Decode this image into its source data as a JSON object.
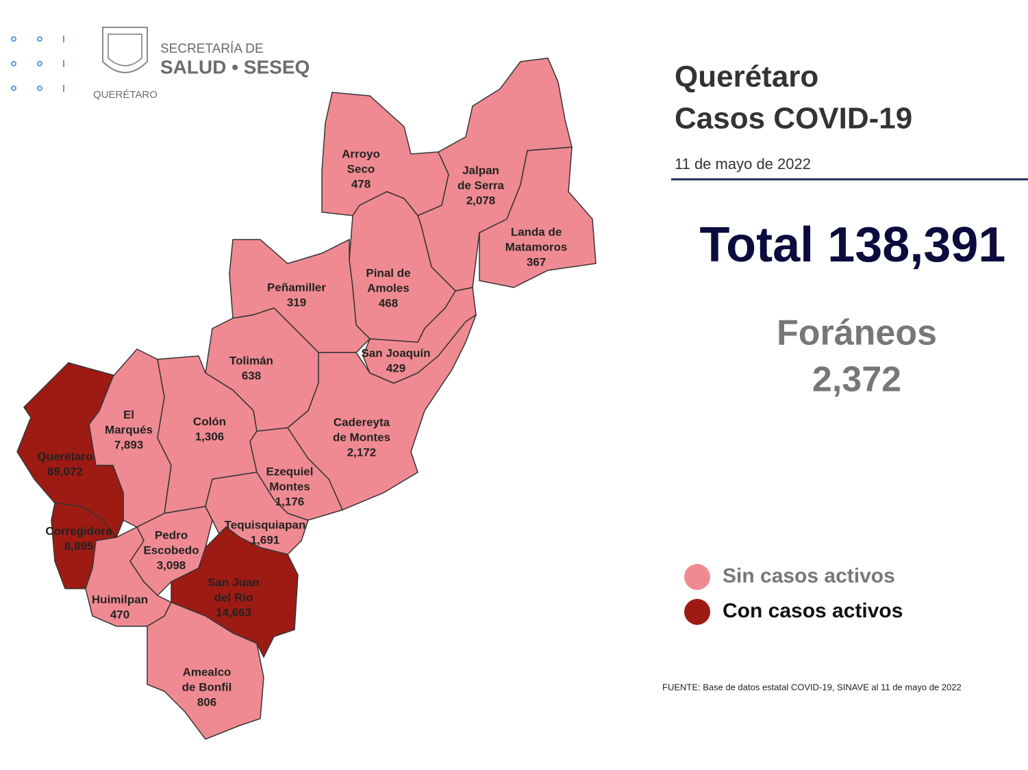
{
  "header": {
    "org_line1": "SECRETARÍA DE",
    "org_line2": "SALUD • SESEQ",
    "org_state": "QUERÉTARO"
  },
  "title": {
    "line1": "Querétaro",
    "line2": "Casos COVID-19",
    "date": "11 de mayo de 2022"
  },
  "total": "Total 138,391",
  "foraneos": {
    "label": "Foráneos",
    "value": "2,372"
  },
  "legend": [
    {
      "label": "Sin casos activos",
      "color": "#f08a92"
    },
    {
      "label": "Con casos activos",
      "color": "#9e1b14"
    }
  ],
  "source": "FUENTE: Base de datos estatal COVID-19, SINAVE al 11 de mayo de 2022",
  "municipalities": [
    {
      "name_lines": [
        "Arroyo",
        "Seco"
      ],
      "cases": "478",
      "active": false
    },
    {
      "name_lines": [
        "Jalpan",
        "de Serra"
      ],
      "cases": "2,078",
      "active": false
    },
    {
      "name_lines": [
        "Landa de",
        "Matamoros"
      ],
      "cases": "367",
      "active": false
    },
    {
      "name_lines": [
        "Pinal de",
        "Amoles"
      ],
      "cases": "468",
      "active": false
    },
    {
      "name_lines": [
        "Peñamiller"
      ],
      "cases": "319",
      "active": false
    },
    {
      "name_lines": [
        "San Joaquín"
      ],
      "cases": "429",
      "active": false
    },
    {
      "name_lines": [
        "Tolimán"
      ],
      "cases": "638",
      "active": false
    },
    {
      "name_lines": [
        "Cadereyta",
        "de Montes"
      ],
      "cases": "2,172",
      "active": false
    },
    {
      "name_lines": [
        "El",
        "Marqués"
      ],
      "cases": "7,893",
      "active": false
    },
    {
      "name_lines": [
        "Colón"
      ],
      "cases": "1,306",
      "active": false
    },
    {
      "name_lines": [
        "Querétaro"
      ],
      "cases": "89,072",
      "active": true
    },
    {
      "name_lines": [
        "Ezequiel",
        "Montes"
      ],
      "cases": "1,176",
      "active": false
    },
    {
      "name_lines": [
        "Corregidora"
      ],
      "cases": "8,895",
      "active": true
    },
    {
      "name_lines": [
        "Pedro",
        "Escobedo"
      ],
      "cases": "3,098",
      "active": false
    },
    {
      "name_lines": [
        "Tequisquiapan"
      ],
      "cases": "1,691",
      "active": false
    },
    {
      "name_lines": [
        "San Juan",
        "del Río"
      ],
      "cases": "14,663",
      "active": true
    },
    {
      "name_lines": [
        "Huimilpan"
      ],
      "cases": "470",
      "active": false
    },
    {
      "name_lines": [
        "Amealco",
        "de Bonfil"
      ],
      "cases": "806",
      "active": false
    }
  ]
}
